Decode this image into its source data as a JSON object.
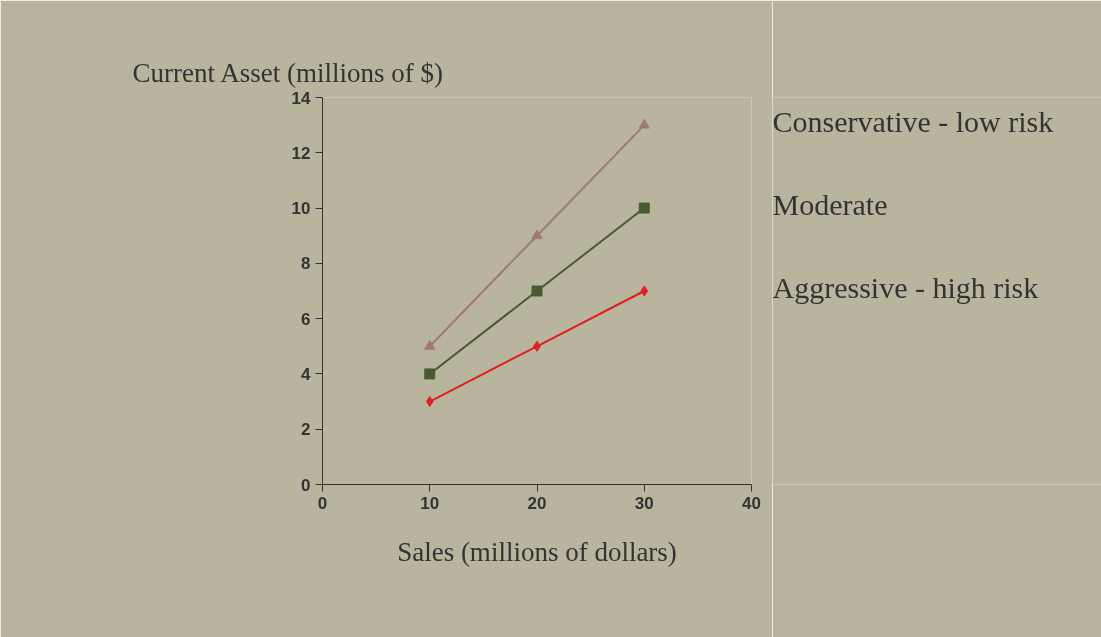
{
  "chart_data": {
    "type": "line",
    "xlabel": "Sales (millions of dollars)",
    "ylabel": "Current Asset (millions of $)",
    "x": [
      10,
      20,
      30
    ],
    "series": [
      {
        "name": "Conservative - low risk",
        "color": "#a07878",
        "marker": "triangle",
        "values": [
          5,
          9,
          13
        ]
      },
      {
        "name": "Moderate",
        "color": "#4a5a30",
        "marker": "square",
        "values": [
          4,
          7,
          10
        ]
      },
      {
        "name": "Aggressive - high risk",
        "color": "#e02020",
        "marker": "diamond",
        "values": [
          3,
          5,
          7
        ]
      }
    ],
    "xlim": [
      0,
      40
    ],
    "xticks": [
      0,
      10,
      20,
      30,
      40
    ],
    "ylim": [
      0,
      14
    ],
    "yticks": [
      0,
      2,
      4,
      6,
      8,
      10,
      12,
      14
    ],
    "grid": false,
    "legend": false
  }
}
